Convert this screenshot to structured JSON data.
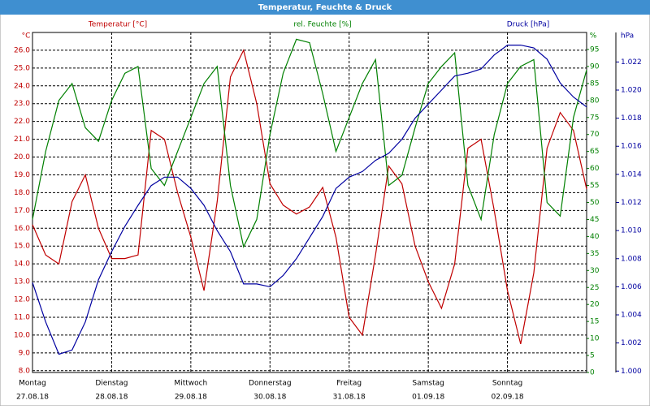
{
  "chart_data": {
    "type": "line",
    "title": "Temperatur, Feuchte & Druck",
    "categories": [
      "Montag",
      null,
      null,
      null,
      null,
      null,
      "Dienstag",
      null,
      null,
      null,
      null,
      null,
      "Mittwoch",
      null,
      null,
      null,
      null,
      null,
      "Donnerstag",
      null,
      null,
      null,
      null,
      null,
      "Freitag",
      null,
      null,
      null,
      null,
      null,
      "Samstag",
      null,
      null,
      null,
      null,
      null,
      "Sonntag",
      null,
      null,
      null,
      null,
      null,
      null
    ],
    "dates": [
      "27.08.18",
      null,
      null,
      null,
      null,
      null,
      "28.08.18",
      null,
      null,
      null,
      null,
      null,
      "29.08.18",
      null,
      null,
      null,
      null,
      null,
      "30.08.18",
      null,
      null,
      null,
      null,
      null,
      "31.08.18",
      null,
      null,
      null,
      null,
      null,
      "01.09.18",
      null,
      null,
      null,
      null,
      null,
      "02.09.18",
      null,
      null,
      null,
      null,
      null,
      null
    ],
    "series": [
      {
        "name": "Temperatur [°C]",
        "color": "#c00000",
        "axis": "y",
        "values": [
          16.2,
          14.5,
          14.0,
          17.5,
          19.0,
          16.0,
          14.3,
          14.3,
          14.5,
          21.5,
          21.0,
          18.0,
          15.5,
          12.5,
          17.5,
          24.5,
          26.0,
          23.0,
          18.5,
          17.3,
          16.8,
          17.2,
          18.3,
          15.5,
          11.0,
          10.0,
          14.5,
          19.5,
          18.5,
          15.0,
          13.0,
          11.5,
          14.0,
          20.5,
          21.0,
          17.0,
          12.5,
          9.5,
          13.5,
          20.5,
          22.5,
          21.5,
          18.2
        ]
      },
      {
        "name": "rel. Feuchte [%]",
        "color": "#008000",
        "axis": "y2",
        "values": [
          45,
          65,
          80,
          85,
          72,
          68,
          80,
          88,
          90,
          60,
          55,
          65,
          75,
          85,
          90,
          55,
          37,
          45,
          70,
          88,
          98,
          97,
          82,
          65,
          75,
          85,
          92,
          55,
          58,
          72,
          85,
          90,
          94,
          55,
          45,
          70,
          85,
          90,
          92,
          50,
          46,
          75,
          89
        ]
      },
      {
        "name": "Druck [hPa]",
        "color": "#0000a0",
        "axis": "y3",
        "values": [
          1.0063,
          1.0035,
          1.0012,
          1.0015,
          1.0035,
          1.0065,
          1.0085,
          1.0103,
          1.0118,
          1.0132,
          1.0138,
          1.0138,
          1.013,
          1.0118,
          1.01,
          1.0085,
          1.0062,
          1.0062,
          1.006,
          1.0068,
          1.008,
          1.0095,
          1.011,
          1.013,
          1.0138,
          1.0142,
          1.015,
          1.0155,
          1.0165,
          1.018,
          1.019,
          1.02,
          1.021,
          1.0212,
          1.0215,
          1.0225,
          1.0232,
          1.0232,
          1.023,
          1.0222,
          1.0205,
          1.0195,
          1.0188
        ]
      }
    ],
    "y_unit": "°C",
    "y2_unit": "%",
    "y3_unit": "hPa",
    "ylim": [
      7.9,
      27
    ],
    "yticks": [
      {
        "value": 8,
        "label": "8.0"
      },
      {
        "value": 9,
        "label": "9.0"
      },
      {
        "value": 10,
        "label": "10.0"
      },
      {
        "value": 11,
        "label": "11.0"
      },
      {
        "value": 12,
        "label": "12.0"
      },
      {
        "value": 13,
        "label": "13.0"
      },
      {
        "value": 14,
        "label": "14.0"
      },
      {
        "value": 15,
        "label": "15.0"
      },
      {
        "value": 16,
        "label": "16.0"
      },
      {
        "value": 17,
        "label": "17.0"
      },
      {
        "value": 18,
        "label": "18.0"
      },
      {
        "value": 19,
        "label": "19.0"
      },
      {
        "value": 20,
        "label": "20.0"
      },
      {
        "value": 21,
        "label": "21.0"
      },
      {
        "value": 22,
        "label": "22.0"
      },
      {
        "value": 23,
        "label": "23.0"
      },
      {
        "value": 24,
        "label": "24.0"
      },
      {
        "value": 25,
        "label": "25.0"
      },
      {
        "value": 26,
        "label": "26.0"
      }
    ],
    "y2lim": [
      0,
      100
    ],
    "y2ticks": [
      0,
      5,
      10,
      15,
      20,
      25,
      30,
      35,
      40,
      45,
      50,
      55,
      60,
      65,
      70,
      75,
      80,
      85,
      90,
      95
    ],
    "y3lim": [
      0.9999,
      1.0241
    ],
    "y3ticks": [
      {
        "value": 1.0,
        "label": "1.000"
      },
      {
        "value": 1.002,
        "label": "1.002"
      },
      {
        "value": 1.004,
        "label": "1.004"
      },
      {
        "value": 1.006,
        "label": "1.006"
      },
      {
        "value": 1.008,
        "label": "1.008"
      },
      {
        "value": 1.01,
        "label": "1.010"
      },
      {
        "value": 1.012,
        "label": "1.012"
      },
      {
        "value": 1.014,
        "label": "1.014"
      },
      {
        "value": 1.016,
        "label": "1.016"
      },
      {
        "value": 1.018,
        "label": "1.018"
      },
      {
        "value": 1.02,
        "label": "1.020"
      },
      {
        "value": 1.022,
        "label": "1.022"
      }
    ],
    "grid": true
  }
}
